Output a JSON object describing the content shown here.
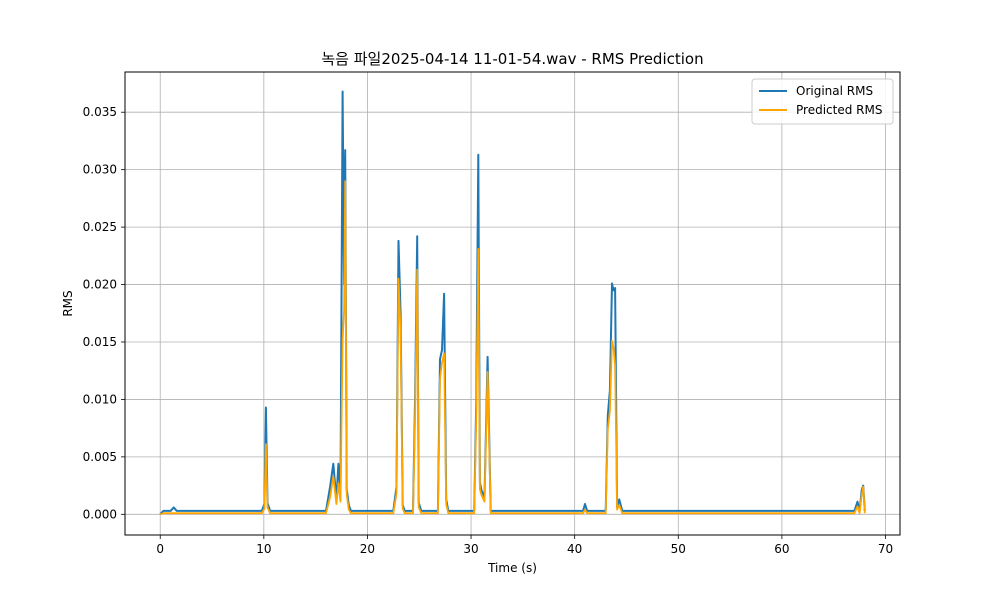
{
  "chart_data": {
    "type": "line",
    "title": "녹음 파일2025-04-14 11-01-54.wav - RMS Prediction",
    "xlabel": "Time (s)",
    "ylabel": "RMS",
    "xlim": [
      -3.4,
      71.4
    ],
    "ylim": [
      -0.0018,
      0.0385
    ],
    "xticks": [
      0,
      10,
      20,
      30,
      40,
      50,
      60,
      70
    ],
    "xtick_labels": [
      "0",
      "10",
      "20",
      "30",
      "40",
      "50",
      "60",
      "70"
    ],
    "yticks": [
      0.0,
      0.005,
      0.01,
      0.015,
      0.02,
      0.025,
      0.03,
      0.035
    ],
    "ytick_labels": [
      "0.000",
      "0.005",
      "0.010",
      "0.015",
      "0.020",
      "0.025",
      "0.030",
      "0.035"
    ],
    "grid": true,
    "legend_position": "top-right",
    "series": [
      {
        "name": "Original RMS",
        "color": "#1f77b4",
        "x": [
          0,
          0.3,
          1.0,
          1.3,
          1.6,
          3.5,
          9.8,
          10.05,
          10.2,
          10.35,
          10.6,
          11.0,
          16.0,
          16.4,
          16.7,
          17.0,
          17.2,
          17.4,
          17.6,
          17.75,
          17.85,
          18.0,
          18.2,
          18.4,
          18.6,
          22.5,
          22.8,
          23.0,
          23.2,
          23.4,
          23.6,
          24.4,
          24.6,
          24.8,
          24.95,
          25.2,
          26.8,
          27.0,
          27.2,
          27.4,
          27.6,
          27.8,
          28.0,
          30.3,
          30.5,
          30.7,
          30.85,
          31.0,
          31.3,
          31.6,
          31.9,
          32.1,
          32.4,
          40.8,
          41.0,
          41.2,
          43.0,
          43.2,
          43.4,
          43.6,
          43.75,
          43.9,
          44.1,
          44.3,
          44.6,
          67.0,
          67.3,
          67.5,
          67.7,
          67.85,
          68.0
        ],
        "values": [
          0.0,
          0.0003,
          0.0003,
          0.0006,
          0.0003,
          0.0003,
          0.0003,
          0.0009,
          0.0093,
          0.001,
          0.0003,
          0.0003,
          0.0003,
          0.0024,
          0.0044,
          0.0013,
          0.0044,
          0.0018,
          0.0368,
          0.02,
          0.0317,
          0.0022,
          0.0008,
          0.0003,
          0.0003,
          0.0003,
          0.0024,
          0.0238,
          0.0175,
          0.0008,
          0.0003,
          0.0003,
          0.0102,
          0.0242,
          0.001,
          0.0003,
          0.0003,
          0.0135,
          0.0143,
          0.0192,
          0.0013,
          0.0003,
          0.0003,
          0.0003,
          0.0096,
          0.0313,
          0.0028,
          0.0021,
          0.0015,
          0.0137,
          0.0003,
          0.0003,
          0.0003,
          0.0003,
          0.0009,
          0.0003,
          0.0003,
          0.0086,
          0.0108,
          0.0201,
          0.0195,
          0.0197,
          0.0006,
          0.0013,
          0.0003,
          0.0003,
          0.0011,
          0.0003,
          0.0021,
          0.0025,
          0.0003
        ]
      },
      {
        "name": "Predicted RMS",
        "color": "#ffa500",
        "x": [
          0,
          0.3,
          1.0,
          3.5,
          9.8,
          10.05,
          10.2,
          10.35,
          10.6,
          11.0,
          16.0,
          16.4,
          16.7,
          17.0,
          17.2,
          17.4,
          17.6,
          17.75,
          17.85,
          18.0,
          18.2,
          18.4,
          18.6,
          22.5,
          22.8,
          23.0,
          23.2,
          23.4,
          23.6,
          24.4,
          24.6,
          24.8,
          24.95,
          25.2,
          26.8,
          27.0,
          27.2,
          27.4,
          27.6,
          27.8,
          28.0,
          30.3,
          30.5,
          30.7,
          30.85,
          31.0,
          31.3,
          31.6,
          31.9,
          32.1,
          32.4,
          40.8,
          41.0,
          41.2,
          43.0,
          43.2,
          43.4,
          43.6,
          43.75,
          43.9,
          44.1,
          44.3,
          44.6,
          67.0,
          67.3,
          67.5,
          67.7,
          67.85,
          68.0
        ],
        "values": [
          0.0,
          0.0001,
          0.0001,
          0.0001,
          0.0001,
          0.0005,
          0.0061,
          0.0006,
          0.0001,
          0.0001,
          0.0001,
          0.0015,
          0.0033,
          0.0009,
          0.0027,
          0.0011,
          0.0152,
          0.0178,
          0.029,
          0.0017,
          0.0004,
          0.0001,
          0.0001,
          0.0001,
          0.0018,
          0.0205,
          0.0158,
          0.0005,
          0.0001,
          0.0001,
          0.0085,
          0.0213,
          0.0006,
          0.0001,
          0.0001,
          0.0118,
          0.0132,
          0.014,
          0.0009,
          0.0001,
          0.0001,
          0.0001,
          0.0081,
          0.0231,
          0.0022,
          0.0017,
          0.0011,
          0.0124,
          0.0001,
          0.0001,
          0.0001,
          0.0001,
          0.0004,
          0.0001,
          0.0001,
          0.0074,
          0.009,
          0.0151,
          0.0145,
          0.013,
          0.0004,
          0.0008,
          0.0001,
          0.0001,
          0.0007,
          0.0001,
          0.0017,
          0.0024,
          0.0001
        ]
      }
    ]
  }
}
